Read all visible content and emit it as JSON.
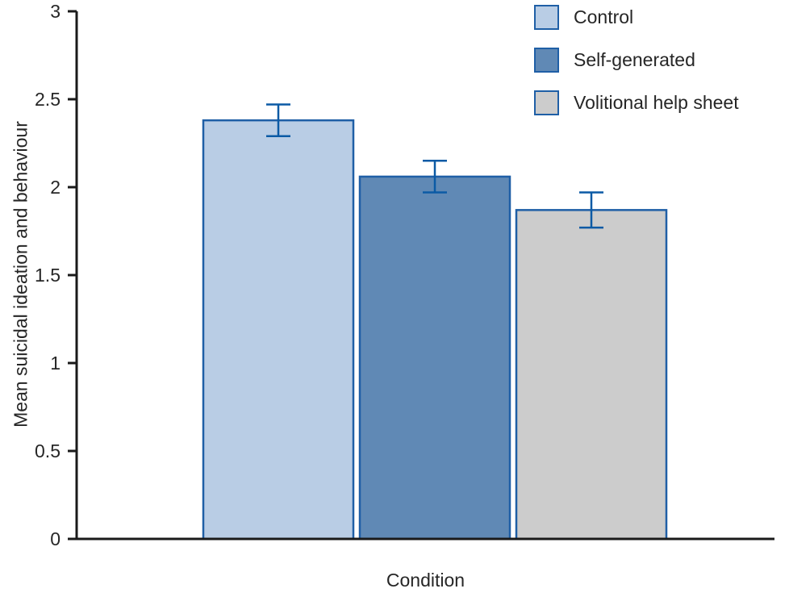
{
  "chart_data": {
    "type": "bar",
    "categories": [
      "Control",
      "Self-generated",
      "Volitional help sheet"
    ],
    "values": [
      2.38,
      2.06,
      1.87
    ],
    "errors": [
      0.09,
      0.09,
      0.1
    ],
    "title": "",
    "xlabel": "Condition",
    "ylabel": "Mean suicidal ideation and behaviour",
    "ylim": [
      0,
      3
    ],
    "yticks": [
      0,
      0.5,
      1,
      1.5,
      2,
      2.5,
      3
    ],
    "legend_position": "top-right",
    "legend_entries": [
      "Control",
      "Self-generated",
      "Volitional help sheet"
    ],
    "colors": {
      "bar_fills": [
        "#b9cde5",
        "#6089b5",
        "#cccccc"
      ],
      "bar_border": "#1f5fa6",
      "error_bar": "#0b5aa5",
      "axis": "#1a1a1a",
      "text": "#262626"
    }
  }
}
